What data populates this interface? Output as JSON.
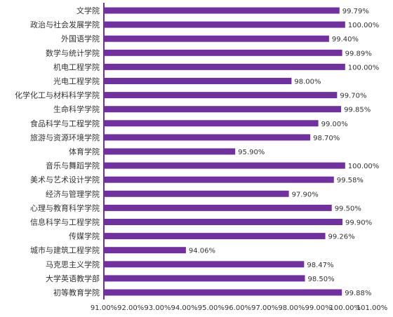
{
  "chart_data": {
    "type": "bar",
    "orientation": "horizontal",
    "categories": [
      "文学院",
      "政治与社会发展学院",
      "外国语学院",
      "数学与统计学院",
      "机电工程学院",
      "光电工程学院",
      "化学化工与材料科学学院",
      "生命科学学院",
      "食品科学与工程学院",
      "旅游与资源环境学院",
      "体育学院",
      "音乐与舞蹈学院",
      "美术与艺术设计学院",
      "经济与管理学院",
      "心理与教育科学学院",
      "信息科学与工程学院",
      "传媒学院",
      "城市与建筑工程学院",
      "马克思主义学院",
      "大学英语教学部",
      "初等教育学院"
    ],
    "values": [
      99.79,
      100.0,
      99.4,
      99.89,
      100.0,
      98.0,
      99.7,
      99.85,
      99.0,
      98.7,
      95.9,
      100.0,
      99.58,
      97.9,
      99.5,
      99.9,
      99.26,
      94.06,
      98.47,
      98.5,
      99.88
    ],
    "value_labels": [
      "99.79%",
      "100.00%",
      "99.40%",
      "99.89%",
      "100.00%",
      "98.00%",
      "99.70%",
      "99.85%",
      "99.00%",
      "98.70%",
      "95.90%",
      "100.00%",
      "99.58%",
      "97.90%",
      "99.50%",
      "99.90%",
      "99.26%",
      "94.06%",
      "98.47%",
      "98.50%",
      "99.88%"
    ],
    "xlim": [
      91,
      101
    ],
    "ticks": [
      91,
      92,
      93,
      94,
      95,
      96,
      97,
      98,
      99,
      100,
      101
    ],
    "tick_labels": [
      "91.00%",
      "92.00%",
      "93.00%",
      "94.00%",
      "95.00%",
      "96.00%",
      "97.00%",
      "98.00%",
      "99.00%",
      "100.00%",
      "101.00%"
    ],
    "title": "",
    "xlabel": "",
    "ylabel": "",
    "grid": false,
    "legend": "none",
    "bar_color": "#7030A0",
    "axis_color": "#7030A0"
  }
}
